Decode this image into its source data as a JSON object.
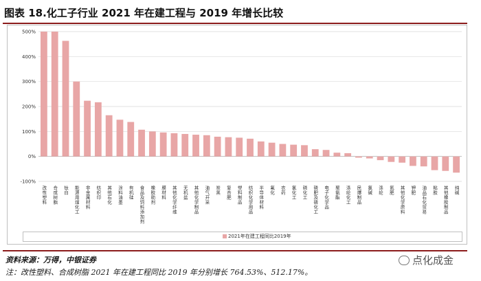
{
  "title": "图表 18.化工子行业 2021 年在建工程与 2019 年增长比较",
  "source": "资料来源：万得，中银证券",
  "note": "注：改性塑料、合成树脂 2021 年在建工程同比 2019 年分别增长 764.53%、512.17%。",
  "watermark": "点化成金",
  "chart_data": {
    "type": "bar",
    "ylim": [
      -100,
      500
    ],
    "yticks": [
      500,
      400,
      300,
      200,
      100,
      0,
      -100
    ],
    "ytick_labels": [
      "500%",
      "400%",
      "300%",
      "200%",
      "100%",
      "0%",
      "-100%"
    ],
    "categories": [
      "改性塑料",
      "合成树脂",
      "钛白",
      "能源用煤化工",
      "非金属材料",
      "纺织印",
      "其他石化",
      "涂料油墨",
      "有机硅",
      "食品及饲料添加剂",
      "橡胶助剂",
      "膜材料",
      "其他化学纤维",
      "无机盐",
      "其他化学制品",
      "油气开采",
      "炭黑",
      "复合肥",
      "塑料制品",
      "纺织化学用品",
      "半导体材料",
      "氟化",
      "农药",
      "氯化工",
      "磷化工",
      "磷肥及磷化工",
      "电子化学品",
      "聚氨酯",
      "涤纶化工",
      "民爆制品",
      "氯碱",
      "涤纶",
      "氮肥",
      "其他化学原料",
      "钾肥",
      "油品石化贸易",
      "粘胶",
      "其他橡胶制品",
      "纯碱"
    ],
    "values": [
      500,
      500,
      463,
      300,
      223,
      217,
      165,
      147,
      138,
      107,
      100,
      96,
      93,
      90,
      87,
      85,
      79,
      77,
      75,
      71,
      60,
      55,
      50,
      47,
      45,
      29,
      26,
      15,
      13,
      -5,
      -8,
      -15,
      -22,
      -25,
      -38,
      -40,
      -55,
      -58,
      -65
    ],
    "series_name": "2021年在建工程同比2019年",
    "legend_position": "bottom",
    "bar_color": "#e8a6a6",
    "gridlines": true
  }
}
